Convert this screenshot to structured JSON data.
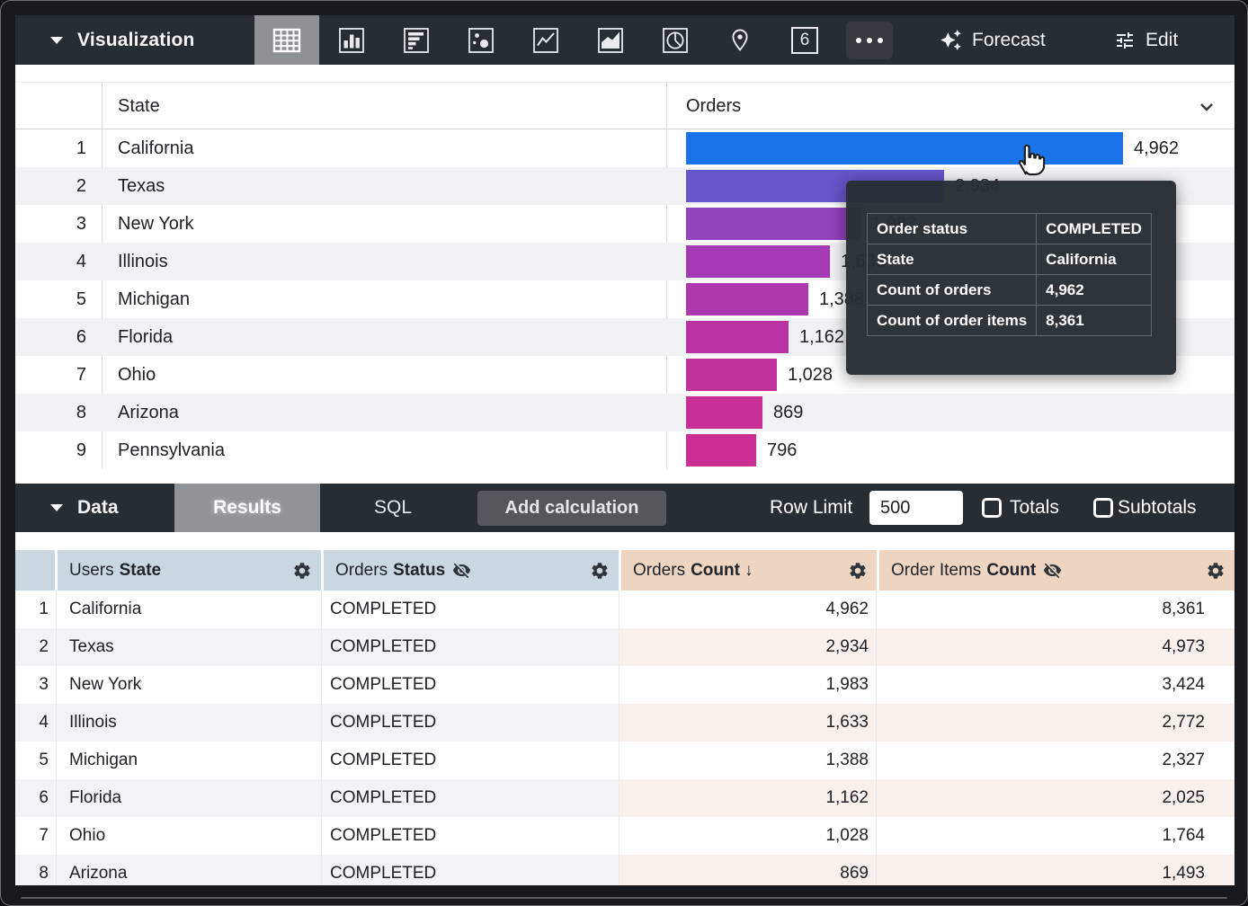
{
  "viz_toolbar": {
    "title": "Visualization",
    "forecast_label": "Forecast",
    "edit_label": "Edit",
    "single_value_icon_text": "6",
    "icon_names": [
      "table",
      "column-chart",
      "bar-chart",
      "scatter",
      "line-chart",
      "area-chart",
      "pie-chart",
      "map-pin",
      "single-value",
      "more-options"
    ],
    "selected_icon": "table"
  },
  "viz_table": {
    "header": {
      "state": "State",
      "orders": "Orders"
    },
    "max_value": 4962,
    "rows": [
      {
        "n": "1",
        "state": "California",
        "value": 4962,
        "label": "4,962",
        "color": "#1a73e8"
      },
      {
        "n": "2",
        "state": "Texas",
        "value": 2934,
        "label": "2,934",
        "color": "#6556c9"
      },
      {
        "n": "3",
        "state": "New York",
        "value": 1983,
        "label": "1,983",
        "color": "#9242bd"
      },
      {
        "n": "4",
        "state": "Illinois",
        "value": 1633,
        "label": "1,633",
        "color": "#a43ab4"
      },
      {
        "n": "5",
        "state": "Michigan",
        "value": 1388,
        "label": "1,388",
        "color": "#ae37ab"
      },
      {
        "n": "6",
        "state": "Florida",
        "value": 1162,
        "label": "1,162",
        "color": "#b933a2"
      },
      {
        "n": "7",
        "state": "Ohio",
        "value": 1028,
        "label": "1,028",
        "color": "#c1319b"
      },
      {
        "n": "8",
        "state": "Arizona",
        "value": 869,
        "label": "869",
        "color": "#c72f96"
      },
      {
        "n": "9",
        "state": "Pennsylvania",
        "value": 796,
        "label": "796",
        "color": "#cb2e92"
      }
    ]
  },
  "tooltip": {
    "rows": [
      {
        "label": "Order status",
        "value": "COMPLETED"
      },
      {
        "label": "State",
        "value": "California"
      },
      {
        "label": "Count of orders",
        "value": "4,962"
      },
      {
        "label": "Count of order items",
        "value": "8,361"
      }
    ]
  },
  "data_toolbar": {
    "title": "Data",
    "tabs": [
      {
        "label": "Results",
        "active": true
      },
      {
        "label": "SQL",
        "active": false
      }
    ],
    "add_calculation_label": "Add calculation",
    "row_limit_label": "Row Limit",
    "row_limit_value": "500",
    "totals_label": "Totals",
    "totals_checked": false,
    "subtotals_label": "Subtotals",
    "subtotals_checked": false
  },
  "data_table": {
    "columns": [
      {
        "prefix": "Users",
        "field": "State",
        "type": "dimension",
        "hidden": false,
        "sorted": false
      },
      {
        "prefix": "Orders",
        "field": "Status",
        "type": "dimension",
        "hidden": true,
        "sorted": false
      },
      {
        "prefix": "Orders",
        "field": "Count",
        "type": "measure",
        "hidden": false,
        "sorted": true
      },
      {
        "prefix": "Order Items",
        "field": "Count",
        "type": "measure",
        "hidden": true,
        "sorted": false
      }
    ],
    "rows": [
      {
        "n": "1",
        "state": "California",
        "status": "COMPLETED",
        "orders_count": "4,962",
        "order_items_count": "8,361"
      },
      {
        "n": "2",
        "state": "Texas",
        "status": "COMPLETED",
        "orders_count": "2,934",
        "order_items_count": "4,973"
      },
      {
        "n": "3",
        "state": "New York",
        "status": "COMPLETED",
        "orders_count": "1,983",
        "order_items_count": "3,424"
      },
      {
        "n": "4",
        "state": "Illinois",
        "status": "COMPLETED",
        "orders_count": "1,633",
        "order_items_count": "2,772"
      },
      {
        "n": "5",
        "state": "Michigan",
        "status": "COMPLETED",
        "orders_count": "1,388",
        "order_items_count": "2,327"
      },
      {
        "n": "6",
        "state": "Florida",
        "status": "COMPLETED",
        "orders_count": "1,162",
        "order_items_count": "2,025"
      },
      {
        "n": "7",
        "state": "Ohio",
        "status": "COMPLETED",
        "orders_count": "1,028",
        "order_items_count": "1,764"
      },
      {
        "n": "8",
        "state": "Arizona",
        "status": "COMPLETED",
        "orders_count": "869",
        "order_items_count": "1,493"
      }
    ]
  },
  "chart_data": {
    "type": "bar",
    "orientation": "horizontal",
    "categories": [
      "California",
      "Texas",
      "New York",
      "Illinois",
      "Michigan",
      "Florida",
      "Ohio",
      "Arizona",
      "Pennsylvania"
    ],
    "series": [
      {
        "name": "Orders Count",
        "values": [
          4962,
          2934,
          1983,
          1633,
          1388,
          1162,
          1028,
          869,
          796
        ]
      },
      {
        "name": "Order Items Count",
        "values": [
          8361,
          4973,
          3424,
          2772,
          2327,
          2025,
          1764,
          1493,
          null
        ]
      }
    ],
    "value_labels": [
      "4,962",
      "2,934",
      "1,983",
      "1,633",
      "1,388",
      "1,162",
      "1,028",
      "869",
      "796"
    ]
  }
}
